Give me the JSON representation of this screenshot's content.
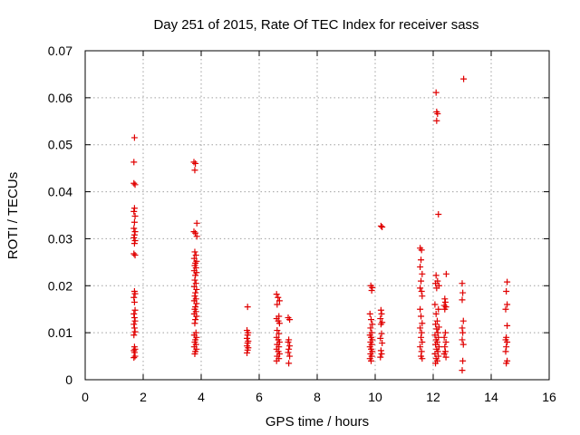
{
  "chart_data": {
    "type": "scatter",
    "title": "Day 251 of 2015, Rate Of TEC Index for receiver sass",
    "xlabel": "GPS time / hours",
    "ylabel": "ROTI / TECUs",
    "xlim": [
      0,
      16
    ],
    "ylim": [
      0,
      0.07
    ],
    "x_ticks": [
      "0",
      "2",
      "4",
      "6",
      "8",
      "10",
      "12",
      "14",
      "16"
    ],
    "y_ticks": [
      "0",
      "0.01",
      "0.02",
      "0.03",
      "0.04",
      "0.05",
      "0.06",
      "0.07"
    ],
    "x_tick_values": [
      0,
      2,
      4,
      6,
      8,
      10,
      12,
      14,
      16
    ],
    "y_tick_values": [
      0,
      0.01,
      0.02,
      0.03,
      0.04,
      0.05,
      0.06,
      0.07
    ],
    "grid": true,
    "marker": "+",
    "color": "#e00000",
    "series": [
      {
        "name": "sass",
        "points": [
          [
            1.7,
            0.0515
          ],
          [
            1.68,
            0.0463
          ],
          [
            1.68,
            0.0418
          ],
          [
            1.72,
            0.0415
          ],
          [
            1.7,
            0.0365
          ],
          [
            1.68,
            0.0358
          ],
          [
            1.72,
            0.0348
          ],
          [
            1.7,
            0.0335
          ],
          [
            1.68,
            0.0322
          ],
          [
            1.72,
            0.0315
          ],
          [
            1.7,
            0.0308
          ],
          [
            1.68,
            0.0302
          ],
          [
            1.72,
            0.0296
          ],
          [
            1.7,
            0.029
          ],
          [
            1.68,
            0.0268
          ],
          [
            1.72,
            0.0265
          ],
          [
            1.7,
            0.0188
          ],
          [
            1.72,
            0.0183
          ],
          [
            1.68,
            0.0175
          ],
          [
            1.7,
            0.0165
          ],
          [
            1.72,
            0.0148
          ],
          [
            1.68,
            0.014
          ],
          [
            1.7,
            0.0132
          ],
          [
            1.72,
            0.0125
          ],
          [
            1.68,
            0.0118
          ],
          [
            1.7,
            0.011
          ],
          [
            1.72,
            0.0102
          ],
          [
            1.68,
            0.0095
          ],
          [
            1.7,
            0.007
          ],
          [
            1.72,
            0.0065
          ],
          [
            1.68,
            0.0062
          ],
          [
            1.7,
            0.0058
          ],
          [
            1.72,
            0.005
          ],
          [
            1.68,
            0.0047
          ],
          [
            3.75,
            0.0463
          ],
          [
            3.8,
            0.046
          ],
          [
            3.78,
            0.0446
          ],
          [
            3.85,
            0.0333
          ],
          [
            3.75,
            0.0315
          ],
          [
            3.8,
            0.0312
          ],
          [
            3.85,
            0.0305
          ],
          [
            3.78,
            0.0272
          ],
          [
            3.82,
            0.0265
          ],
          [
            3.76,
            0.0258
          ],
          [
            3.84,
            0.0252
          ],
          [
            3.8,
            0.0248
          ],
          [
            3.78,
            0.0243
          ],
          [
            3.82,
            0.0238
          ],
          [
            3.76,
            0.0232
          ],
          [
            3.84,
            0.0228
          ],
          [
            3.8,
            0.0222
          ],
          [
            3.78,
            0.0212
          ],
          [
            3.82,
            0.0205
          ],
          [
            3.76,
            0.0198
          ],
          [
            3.84,
            0.0192
          ],
          [
            3.8,
            0.0185
          ],
          [
            3.78,
            0.0178
          ],
          [
            3.82,
            0.0172
          ],
          [
            3.76,
            0.0168
          ],
          [
            3.84,
            0.0162
          ],
          [
            3.8,
            0.0155
          ],
          [
            3.78,
            0.015
          ],
          [
            3.82,
            0.0145
          ],
          [
            3.76,
            0.014
          ],
          [
            3.84,
            0.0135
          ],
          [
            3.8,
            0.0128
          ],
          [
            3.78,
            0.012
          ],
          [
            3.82,
            0.01
          ],
          [
            3.76,
            0.0095
          ],
          [
            3.84,
            0.009
          ],
          [
            3.8,
            0.0085
          ],
          [
            3.78,
            0.008
          ],
          [
            3.82,
            0.0075
          ],
          [
            3.76,
            0.007
          ],
          [
            3.84,
            0.0065
          ],
          [
            3.8,
            0.006
          ],
          [
            3.78,
            0.0055
          ],
          [
            5.6,
            0.0155
          ],
          [
            5.58,
            0.0105
          ],
          [
            5.62,
            0.01
          ],
          [
            5.6,
            0.0095
          ],
          [
            5.58,
            0.0088
          ],
          [
            5.62,
            0.0082
          ],
          [
            5.6,
            0.0078
          ],
          [
            5.58,
            0.0072
          ],
          [
            5.62,
            0.0068
          ],
          [
            5.6,
            0.0063
          ],
          [
            5.58,
            0.0057
          ],
          [
            6.6,
            0.0182
          ],
          [
            6.65,
            0.0175
          ],
          [
            6.7,
            0.0168
          ],
          [
            6.62,
            0.016
          ],
          [
            6.68,
            0.0135
          ],
          [
            6.6,
            0.013
          ],
          [
            6.66,
            0.0125
          ],
          [
            6.7,
            0.012
          ],
          [
            6.62,
            0.0105
          ],
          [
            6.68,
            0.0098
          ],
          [
            6.6,
            0.009
          ],
          [
            6.66,
            0.0085
          ],
          [
            6.7,
            0.008
          ],
          [
            6.62,
            0.0075
          ],
          [
            6.68,
            0.007
          ],
          [
            6.6,
            0.0065
          ],
          [
            6.66,
            0.006
          ],
          [
            6.7,
            0.0055
          ],
          [
            6.62,
            0.005
          ],
          [
            6.68,
            0.0045
          ],
          [
            6.6,
            0.004
          ],
          [
            7.0,
            0.0132
          ],
          [
            7.05,
            0.0128
          ],
          [
            7.02,
            0.0085
          ],
          [
            7.0,
            0.008
          ],
          [
            7.05,
            0.0072
          ],
          [
            7.02,
            0.0065
          ],
          [
            7.0,
            0.0058
          ],
          [
            7.05,
            0.005
          ],
          [
            7.02,
            0.0035
          ],
          [
            9.85,
            0.02
          ],
          [
            9.9,
            0.0196
          ],
          [
            9.88,
            0.019
          ],
          [
            9.82,
            0.014
          ],
          [
            9.86,
            0.0128
          ],
          [
            9.9,
            0.0118
          ],
          [
            9.84,
            0.011
          ],
          [
            9.88,
            0.01
          ],
          [
            9.82,
            0.0095
          ],
          [
            9.86,
            0.009
          ],
          [
            9.9,
            0.0085
          ],
          [
            9.84,
            0.008
          ],
          [
            9.88,
            0.0075
          ],
          [
            9.82,
            0.007
          ],
          [
            9.86,
            0.0065
          ],
          [
            9.9,
            0.006
          ],
          [
            9.84,
            0.0055
          ],
          [
            9.88,
            0.005
          ],
          [
            9.82,
            0.0045
          ],
          [
            9.86,
            0.004
          ],
          [
            10.2,
            0.0327
          ],
          [
            10.24,
            0.0325
          ],
          [
            10.2,
            0.0148
          ],
          [
            10.22,
            0.014
          ],
          [
            10.18,
            0.013
          ],
          [
            10.24,
            0.0122
          ],
          [
            10.2,
            0.0118
          ],
          [
            10.22,
            0.0098
          ],
          [
            10.18,
            0.0088
          ],
          [
            10.24,
            0.0078
          ],
          [
            10.2,
            0.0062
          ],
          [
            10.22,
            0.0055
          ],
          [
            10.18,
            0.0048
          ],
          [
            11.55,
            0.028
          ],
          [
            11.6,
            0.0276
          ],
          [
            11.58,
            0.0255
          ],
          [
            11.55,
            0.024
          ],
          [
            11.62,
            0.0225
          ],
          [
            11.58,
            0.021
          ],
          [
            11.55,
            0.0195
          ],
          [
            11.6,
            0.0188
          ],
          [
            11.62,
            0.0178
          ],
          [
            11.55,
            0.015
          ],
          [
            11.58,
            0.0135
          ],
          [
            11.62,
            0.012
          ],
          [
            11.55,
            0.011
          ],
          [
            11.6,
            0.01
          ],
          [
            11.58,
            0.009
          ],
          [
            11.62,
            0.008
          ],
          [
            11.55,
            0.007
          ],
          [
            11.6,
            0.006
          ],
          [
            11.58,
            0.005
          ],
          [
            11.62,
            0.0045
          ],
          [
            12.1,
            0.0611
          ],
          [
            12.12,
            0.057
          ],
          [
            12.15,
            0.0566
          ],
          [
            12.12,
            0.0551
          ],
          [
            12.18,
            0.0352
          ],
          [
            12.1,
            0.0222
          ],
          [
            12.15,
            0.021
          ],
          [
            12.08,
            0.0205
          ],
          [
            12.2,
            0.02
          ],
          [
            12.12,
            0.0195
          ],
          [
            12.06,
            0.016
          ],
          [
            12.18,
            0.015
          ],
          [
            12.1,
            0.014
          ],
          [
            12.14,
            0.0125
          ],
          [
            12.08,
            0.0118
          ],
          [
            12.2,
            0.0112
          ],
          [
            12.12,
            0.0108
          ],
          [
            12.16,
            0.01
          ],
          [
            12.06,
            0.0095
          ],
          [
            12.18,
            0.009
          ],
          [
            12.1,
            0.0085
          ],
          [
            12.14,
            0.008
          ],
          [
            12.08,
            0.0075
          ],
          [
            12.2,
            0.007
          ],
          [
            12.12,
            0.0065
          ],
          [
            12.16,
            0.006
          ],
          [
            12.06,
            0.0055
          ],
          [
            12.18,
            0.005
          ],
          [
            12.1,
            0.0045
          ],
          [
            12.14,
            0.004
          ],
          [
            12.08,
            0.0035
          ],
          [
            12.45,
            0.0225
          ],
          [
            12.4,
            0.0172
          ],
          [
            12.42,
            0.0165
          ],
          [
            12.38,
            0.0158
          ],
          [
            12.44,
            0.0155
          ],
          [
            12.4,
            0.015
          ],
          [
            12.42,
            0.01
          ],
          [
            12.38,
            0.009
          ],
          [
            12.44,
            0.008
          ],
          [
            12.4,
            0.007
          ],
          [
            12.42,
            0.006
          ],
          [
            12.38,
            0.0055
          ],
          [
            12.44,
            0.0048
          ],
          [
            13.05,
            0.064
          ],
          [
            13.0,
            0.0205
          ],
          [
            13.02,
            0.0185
          ],
          [
            13.0,
            0.017
          ],
          [
            13.04,
            0.0125
          ],
          [
            13.0,
            0.011
          ],
          [
            13.02,
            0.01
          ],
          [
            13.0,
            0.0085
          ],
          [
            13.04,
            0.0075
          ],
          [
            13.02,
            0.004
          ],
          [
            13.0,
            0.002
          ],
          [
            14.55,
            0.0208
          ],
          [
            14.52,
            0.0188
          ],
          [
            14.55,
            0.016
          ],
          [
            14.5,
            0.015
          ],
          [
            14.55,
            0.0115
          ],
          [
            14.52,
            0.009
          ],
          [
            14.5,
            0.0085
          ],
          [
            14.55,
            0.008
          ],
          [
            14.52,
            0.007
          ],
          [
            14.5,
            0.006
          ],
          [
            14.55,
            0.004
          ],
          [
            14.52,
            0.0035
          ]
        ]
      }
    ]
  }
}
